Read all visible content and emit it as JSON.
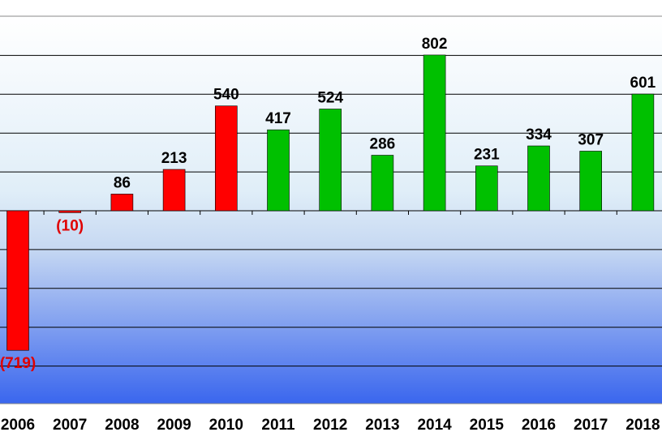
{
  "chart_data": {
    "type": "bar",
    "categories": [
      "2006",
      "2007",
      "2008",
      "2009",
      "2010",
      "2011",
      "2012",
      "2013",
      "2014",
      "2015",
      "2016",
      "2017",
      "2018"
    ],
    "values": [
      -719,
      -10,
      86,
      213,
      540,
      417,
      524,
      286,
      802,
      231,
      334,
      307,
      601
    ],
    "value_labels": [
      "(719)",
      "(10)",
      "86",
      "213",
      "540",
      "417",
      "524",
      "286",
      "802",
      "231",
      "334",
      "307",
      "601"
    ],
    "bar_colors": [
      "#ff0000",
      "#ff0000",
      "#ff0000",
      "#ff0000",
      "#ff0000",
      "#00c000",
      "#00c000",
      "#00c000",
      "#00c000",
      "#00c000",
      "#00c000",
      "#00c000",
      "#00c000"
    ],
    "label_colors": {
      "negative": "#e00000",
      "positive": "#000000"
    },
    "title": "",
    "xlabel": "",
    "ylabel": "",
    "ylim": [
      -1000,
      1000
    ],
    "grid": true,
    "legend": "none",
    "background_colors": {
      "top": "#ffffff",
      "bottom": "#3366ff"
    }
  }
}
